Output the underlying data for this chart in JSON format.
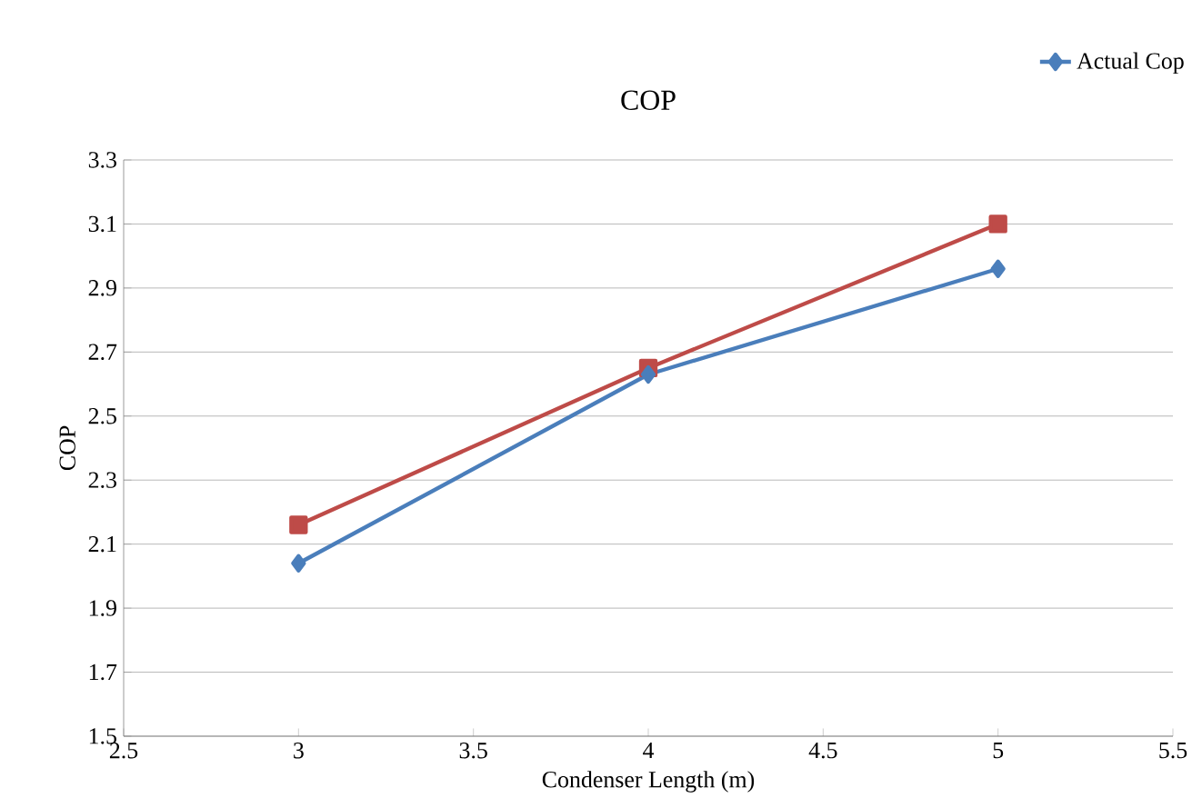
{
  "chart_data": {
    "type": "line",
    "title": "COP",
    "xlabel": "Condenser Length (m)",
    "ylabel": "COP",
    "x": [
      3,
      4,
      5
    ],
    "series": [
      {
        "name": "Actual Cop",
        "color": "#4a7ebb",
        "values": [
          2.04,
          2.63,
          2.96
        ],
        "marker": "diamond"
      },
      {
        "color": "#be4b48",
        "values": [
          2.16,
          2.65,
          3.1
        ],
        "marker": "square"
      }
    ],
    "xlim": [
      2.5,
      5.5
    ],
    "xticks": [
      2.5,
      3,
      3.5,
      4,
      4.5,
      5,
      5.5
    ],
    "ylim": [
      1.5,
      3.3
    ],
    "yticks": [
      1.5,
      1.7,
      1.9,
      2.1,
      2.3,
      2.5,
      2.7,
      2.9,
      3.1,
      3.3
    ],
    "grid": "y",
    "legend": "top right",
    "line_style": "solid"
  }
}
